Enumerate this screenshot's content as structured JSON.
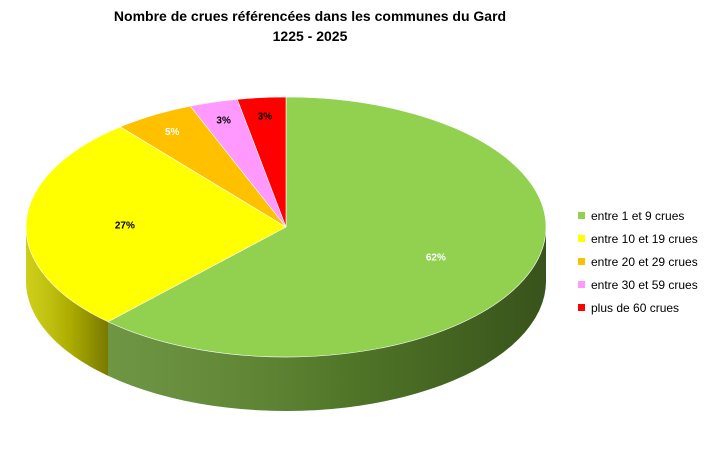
{
  "chart_data": {
    "type": "pie",
    "title": "Nombre de crues référencées dans les communes du Gard",
    "subtitle": "1225 - 2025",
    "legend_position": "right",
    "slices": [
      {
        "label": "entre 1 et 9 crues",
        "value": 62,
        "display": "62%",
        "color": "#92D050",
        "side_color": "#5E8A2E",
        "label_color": "#ffffff"
      },
      {
        "label": "entre 10 et 19 crues",
        "value": 27,
        "display": "27%",
        "color": "#FFFF00",
        "side_color": "#C9C900",
        "label_color": "#000000"
      },
      {
        "label": "entre 20 et 29 crues",
        "value": 5,
        "display": "5%",
        "color": "#FFC000",
        "side_color": "#C99600",
        "label_color": "#ffffff"
      },
      {
        "label": "entre 30 et 59 crues",
        "value": 3,
        "display": "3%",
        "color": "#FF99FF",
        "side_color": "#C977C9",
        "label_color": "#000000"
      },
      {
        "label": "plus de 60 crues",
        "value": 3,
        "display": "3%",
        "color": "#FF0000",
        "side_color": "#B00000",
        "label_color": "#000000"
      }
    ]
  }
}
